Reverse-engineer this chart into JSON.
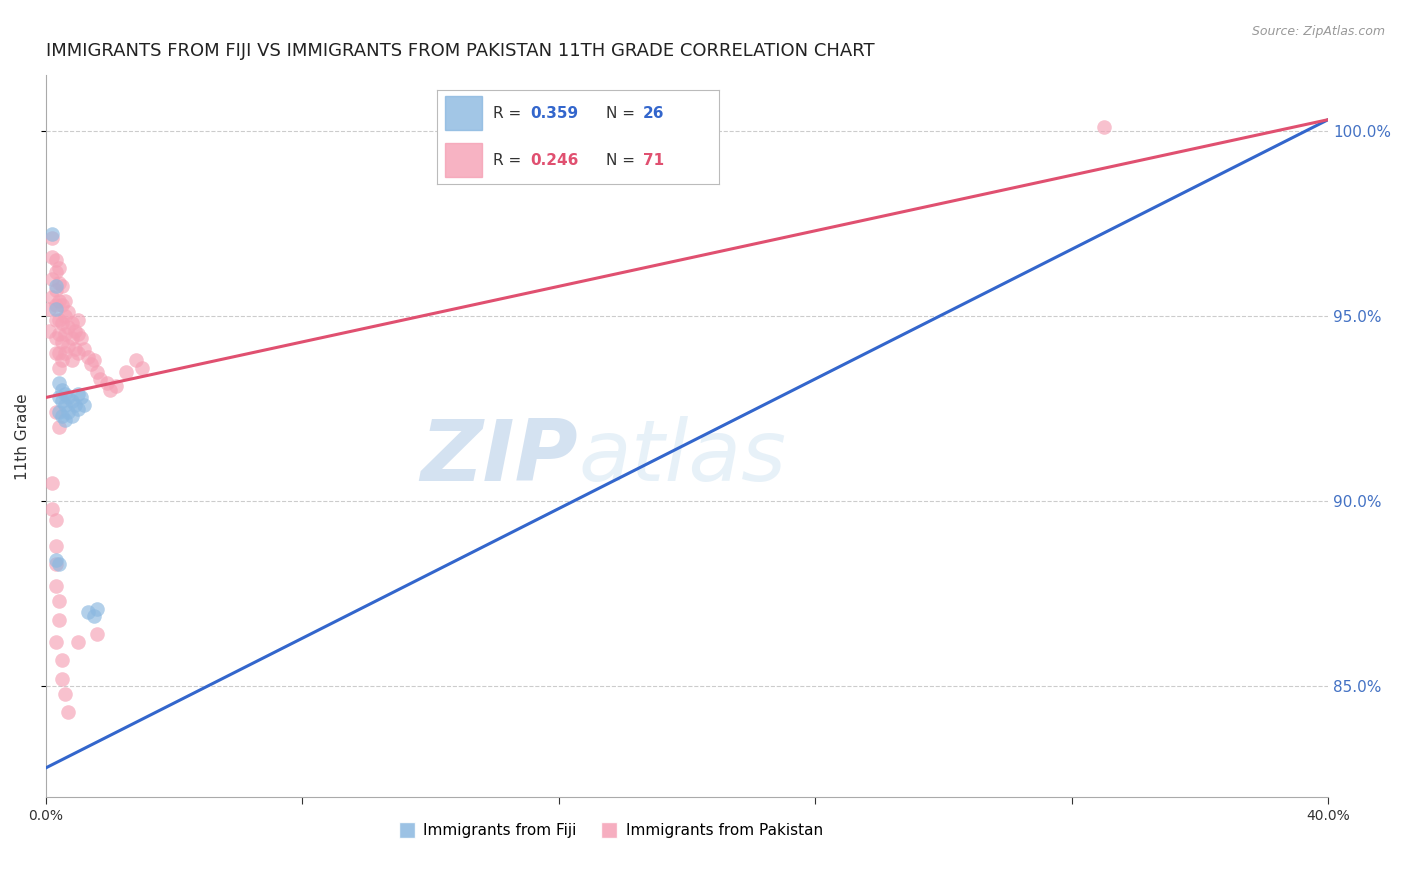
{
  "title": "IMMIGRANTS FROM FIJI VS IMMIGRANTS FROM PAKISTAN 11TH GRADE CORRELATION CHART",
  "source": "Source: ZipAtlas.com",
  "ylabel": "11th Grade",
  "xlim": [
    0.0,
    0.4
  ],
  "ylim": [
    0.82,
    1.015
  ],
  "yticks": [
    0.85,
    0.9,
    0.95,
    1.0
  ],
  "xtick_vals": [
    0.0,
    0.08,
    0.16,
    0.24,
    0.32,
    0.4
  ],
  "fiji_color": "#8bb8e0",
  "pakistan_color": "#f5a0b5",
  "fiji_line_color": "#3366cc",
  "pakistan_line_color": "#e05070",
  "fiji_R": 0.359,
  "fiji_N": 26,
  "pakistan_R": 0.246,
  "pakistan_N": 71,
  "fiji_line_x0": 0.0,
  "fiji_line_y0": 0.828,
  "fiji_line_x1": 0.4,
  "fiji_line_y1": 1.003,
  "pak_line_x0": 0.0,
  "pak_line_y0": 0.928,
  "pak_line_x1": 0.4,
  "pak_line_y1": 1.003,
  "fiji_x": [
    0.002,
    0.003,
    0.003,
    0.004,
    0.004,
    0.004,
    0.005,
    0.005,
    0.005,
    0.006,
    0.006,
    0.006,
    0.007,
    0.007,
    0.008,
    0.008,
    0.009,
    0.01,
    0.01,
    0.011,
    0.012,
    0.013,
    0.015,
    0.016,
    0.003,
    0.004
  ],
  "fiji_y": [
    0.972,
    0.958,
    0.952,
    0.932,
    0.928,
    0.924,
    0.93,
    0.927,
    0.923,
    0.929,
    0.926,
    0.922,
    0.928,
    0.924,
    0.927,
    0.923,
    0.926,
    0.929,
    0.925,
    0.928,
    0.926,
    0.87,
    0.869,
    0.871,
    0.884,
    0.883
  ],
  "pak_x": [
    0.001,
    0.001,
    0.002,
    0.002,
    0.002,
    0.002,
    0.003,
    0.003,
    0.003,
    0.003,
    0.003,
    0.003,
    0.003,
    0.004,
    0.004,
    0.004,
    0.004,
    0.004,
    0.004,
    0.004,
    0.005,
    0.005,
    0.005,
    0.005,
    0.005,
    0.006,
    0.006,
    0.006,
    0.006,
    0.007,
    0.007,
    0.007,
    0.008,
    0.008,
    0.008,
    0.009,
    0.009,
    0.01,
    0.01,
    0.01,
    0.011,
    0.012,
    0.013,
    0.014,
    0.015,
    0.016,
    0.017,
    0.019,
    0.02,
    0.022,
    0.025,
    0.028,
    0.03,
    0.003,
    0.004,
    0.002,
    0.002,
    0.003,
    0.003,
    0.003,
    0.003,
    0.004,
    0.004,
    0.003,
    0.005,
    0.005,
    0.006,
    0.007,
    0.33,
    0.01,
    0.016
  ],
  "pak_y": [
    0.952,
    0.946,
    0.971,
    0.966,
    0.96,
    0.955,
    0.965,
    0.962,
    0.957,
    0.953,
    0.949,
    0.944,
    0.94,
    0.963,
    0.959,
    0.954,
    0.949,
    0.945,
    0.94,
    0.936,
    0.958,
    0.953,
    0.948,
    0.943,
    0.938,
    0.954,
    0.95,
    0.945,
    0.94,
    0.951,
    0.947,
    0.942,
    0.948,
    0.944,
    0.938,
    0.946,
    0.941,
    0.949,
    0.945,
    0.94,
    0.944,
    0.941,
    0.939,
    0.937,
    0.938,
    0.935,
    0.933,
    0.932,
    0.93,
    0.931,
    0.935,
    0.938,
    0.936,
    0.924,
    0.92,
    0.905,
    0.898,
    0.895,
    0.888,
    0.883,
    0.877,
    0.873,
    0.868,
    0.862,
    0.857,
    0.852,
    0.848,
    0.843,
    1.001,
    0.862,
    0.864
  ],
  "background_color": "#ffffff",
  "grid_color": "#cccccc",
  "title_fontsize": 13,
  "legend_fiji_label": "Immigrants from Fiji",
  "legend_pakistan_label": "Immigrants from Pakistan"
}
